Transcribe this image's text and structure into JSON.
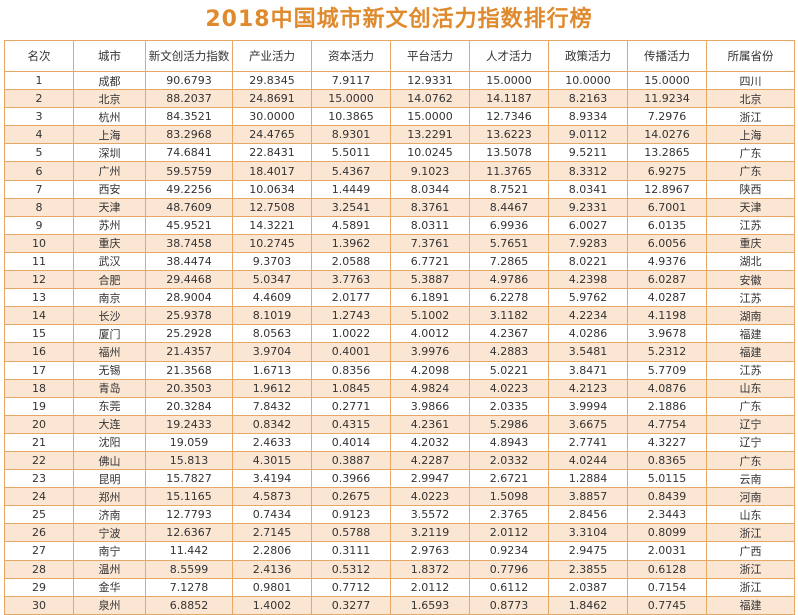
{
  "title": "2018中国城市新文创活力指数排行榜",
  "columns": [
    "名次",
    "城市",
    "新文创活力指数",
    "产业活力",
    "资本活力",
    "平台活力",
    "人才活力",
    "政策活力",
    "传播活力",
    "所属省份"
  ],
  "rows": [
    [
      "1",
      "成都",
      "90.6793",
      "29.8345",
      "7.9117",
      "12.9331",
      "15.0000",
      "10.0000",
      "15.0000",
      "四川"
    ],
    [
      "2",
      "北京",
      "88.2037",
      "24.8691",
      "15.0000",
      "14.0762",
      "14.1187",
      "8.2163",
      "11.9234",
      "北京"
    ],
    [
      "3",
      "杭州",
      "84.3521",
      "30.0000",
      "10.3865",
      "15.0000",
      "12.7346",
      "8.9334",
      "7.2976",
      "浙江"
    ],
    [
      "4",
      "上海",
      "83.2968",
      "24.4765",
      "8.9301",
      "13.2291",
      "13.6223",
      "9.0112",
      "14.0276",
      "上海"
    ],
    [
      "5",
      "深圳",
      "74.6841",
      "22.8431",
      "5.5011",
      "10.0245",
      "13.5078",
      "9.5211",
      "13.2865",
      "广东"
    ],
    [
      "6",
      "广州",
      "59.5759",
      "18.4017",
      "5.4367",
      "9.1023",
      "11.3765",
      "8.3312",
      "6.9275",
      "广东"
    ],
    [
      "7",
      "西安",
      "49.2256",
      "10.0634",
      "1.4449",
      "8.0344",
      "8.7521",
      "8.0341",
      "12.8967",
      "陕西"
    ],
    [
      "8",
      "天津",
      "48.7609",
      "12.7508",
      "3.2541",
      "8.3761",
      "8.4467",
      "9.2331",
      "6.7001",
      "天津"
    ],
    [
      "9",
      "苏州",
      "45.9521",
      "14.3221",
      "4.5891",
      "8.0311",
      "6.9936",
      "6.0027",
      "6.0135",
      "江苏"
    ],
    [
      "10",
      "重庆",
      "38.7458",
      "10.2745",
      "1.3962",
      "7.3761",
      "5.7651",
      "7.9283",
      "6.0056",
      "重庆"
    ],
    [
      "11",
      "武汉",
      "38.4474",
      "9.3703",
      "2.0588",
      "6.7721",
      "7.2865",
      "8.0221",
      "4.9376",
      "湖北"
    ],
    [
      "12",
      "合肥",
      "29.4468",
      "5.0347",
      "3.7763",
      "5.3887",
      "4.9786",
      "4.2398",
      "6.0287",
      "安徽"
    ],
    [
      "13",
      "南京",
      "28.9004",
      "4.4609",
      "2.0177",
      "6.1891",
      "6.2278",
      "5.9762",
      "4.0287",
      "江苏"
    ],
    [
      "14",
      "长沙",
      "25.9378",
      "8.1019",
      "1.2743",
      "5.1002",
      "3.1182",
      "4.2234",
      "4.1198",
      "湖南"
    ],
    [
      "15",
      "厦门",
      "25.2928",
      "8.0563",
      "1.0022",
      "4.0012",
      "4.2367",
      "4.0286",
      "3.9678",
      "福建"
    ],
    [
      "16",
      "福州",
      "21.4357",
      "3.9704",
      "0.4001",
      "3.9976",
      "4.2883",
      "3.5481",
      "5.2312",
      "福建"
    ],
    [
      "17",
      "无锡",
      "21.3568",
      "1.6713",
      "0.8356",
      "4.2098",
      "5.0221",
      "3.8471",
      "5.7709",
      "江苏"
    ],
    [
      "18",
      "青岛",
      "20.3503",
      "1.9612",
      "1.0845",
      "4.9824",
      "4.0223",
      "4.2123",
      "4.0876",
      "山东"
    ],
    [
      "19",
      "东莞",
      "20.3284",
      "7.8432",
      "0.2771",
      "3.9866",
      "2.0335",
      "3.9994",
      "2.1886",
      "广东"
    ],
    [
      "20",
      "大连",
      "19.2433",
      "0.8342",
      "0.4315",
      "4.2361",
      "5.2986",
      "3.6675",
      "4.7754",
      "辽宁"
    ],
    [
      "21",
      "沈阳",
      "19.059",
      "2.4633",
      "0.4014",
      "4.2032",
      "4.8943",
      "2.7741",
      "4.3227",
      "辽宁"
    ],
    [
      "22",
      "佛山",
      "15.813",
      "4.3015",
      "0.3887",
      "4.2287",
      "2.0332",
      "4.0244",
      "0.8365",
      "广东"
    ],
    [
      "23",
      "昆明",
      "15.7827",
      "3.4194",
      "0.3966",
      "2.9947",
      "2.6721",
      "1.2884",
      "5.0115",
      "云南"
    ],
    [
      "24",
      "郑州",
      "15.1165",
      "4.5873",
      "0.2675",
      "4.0223",
      "1.5098",
      "3.8857",
      "0.8439",
      "河南"
    ],
    [
      "25",
      "济南",
      "12.7793",
      "0.7434",
      "0.9123",
      "3.5572",
      "2.3765",
      "2.8456",
      "2.3443",
      "山东"
    ],
    [
      "26",
      "宁波",
      "12.6367",
      "2.7145",
      "0.5788",
      "3.2119",
      "2.0112",
      "3.3104",
      "0.8099",
      "浙江"
    ],
    [
      "27",
      "南宁",
      "11.442",
      "2.2806",
      "0.3111",
      "2.9763",
      "0.9234",
      "2.9475",
      "2.0031",
      "广西"
    ],
    [
      "28",
      "温州",
      "8.5599",
      "2.4136",
      "0.5312",
      "1.8372",
      "0.7796",
      "2.3855",
      "0.6128",
      "浙江"
    ],
    [
      "29",
      "金华",
      "7.1278",
      "0.9801",
      "0.7712",
      "2.0112",
      "0.6112",
      "2.0387",
      "0.7154",
      "浙江"
    ],
    [
      "30",
      "泉州",
      "6.8852",
      "1.4002",
      "0.3277",
      "1.6593",
      "0.8773",
      "1.8462",
      "0.7745",
      "福建"
    ]
  ],
  "colors": {
    "title": "#e08a2e",
    "border": "#e8a865",
    "stripe": "#fbe6d4"
  }
}
